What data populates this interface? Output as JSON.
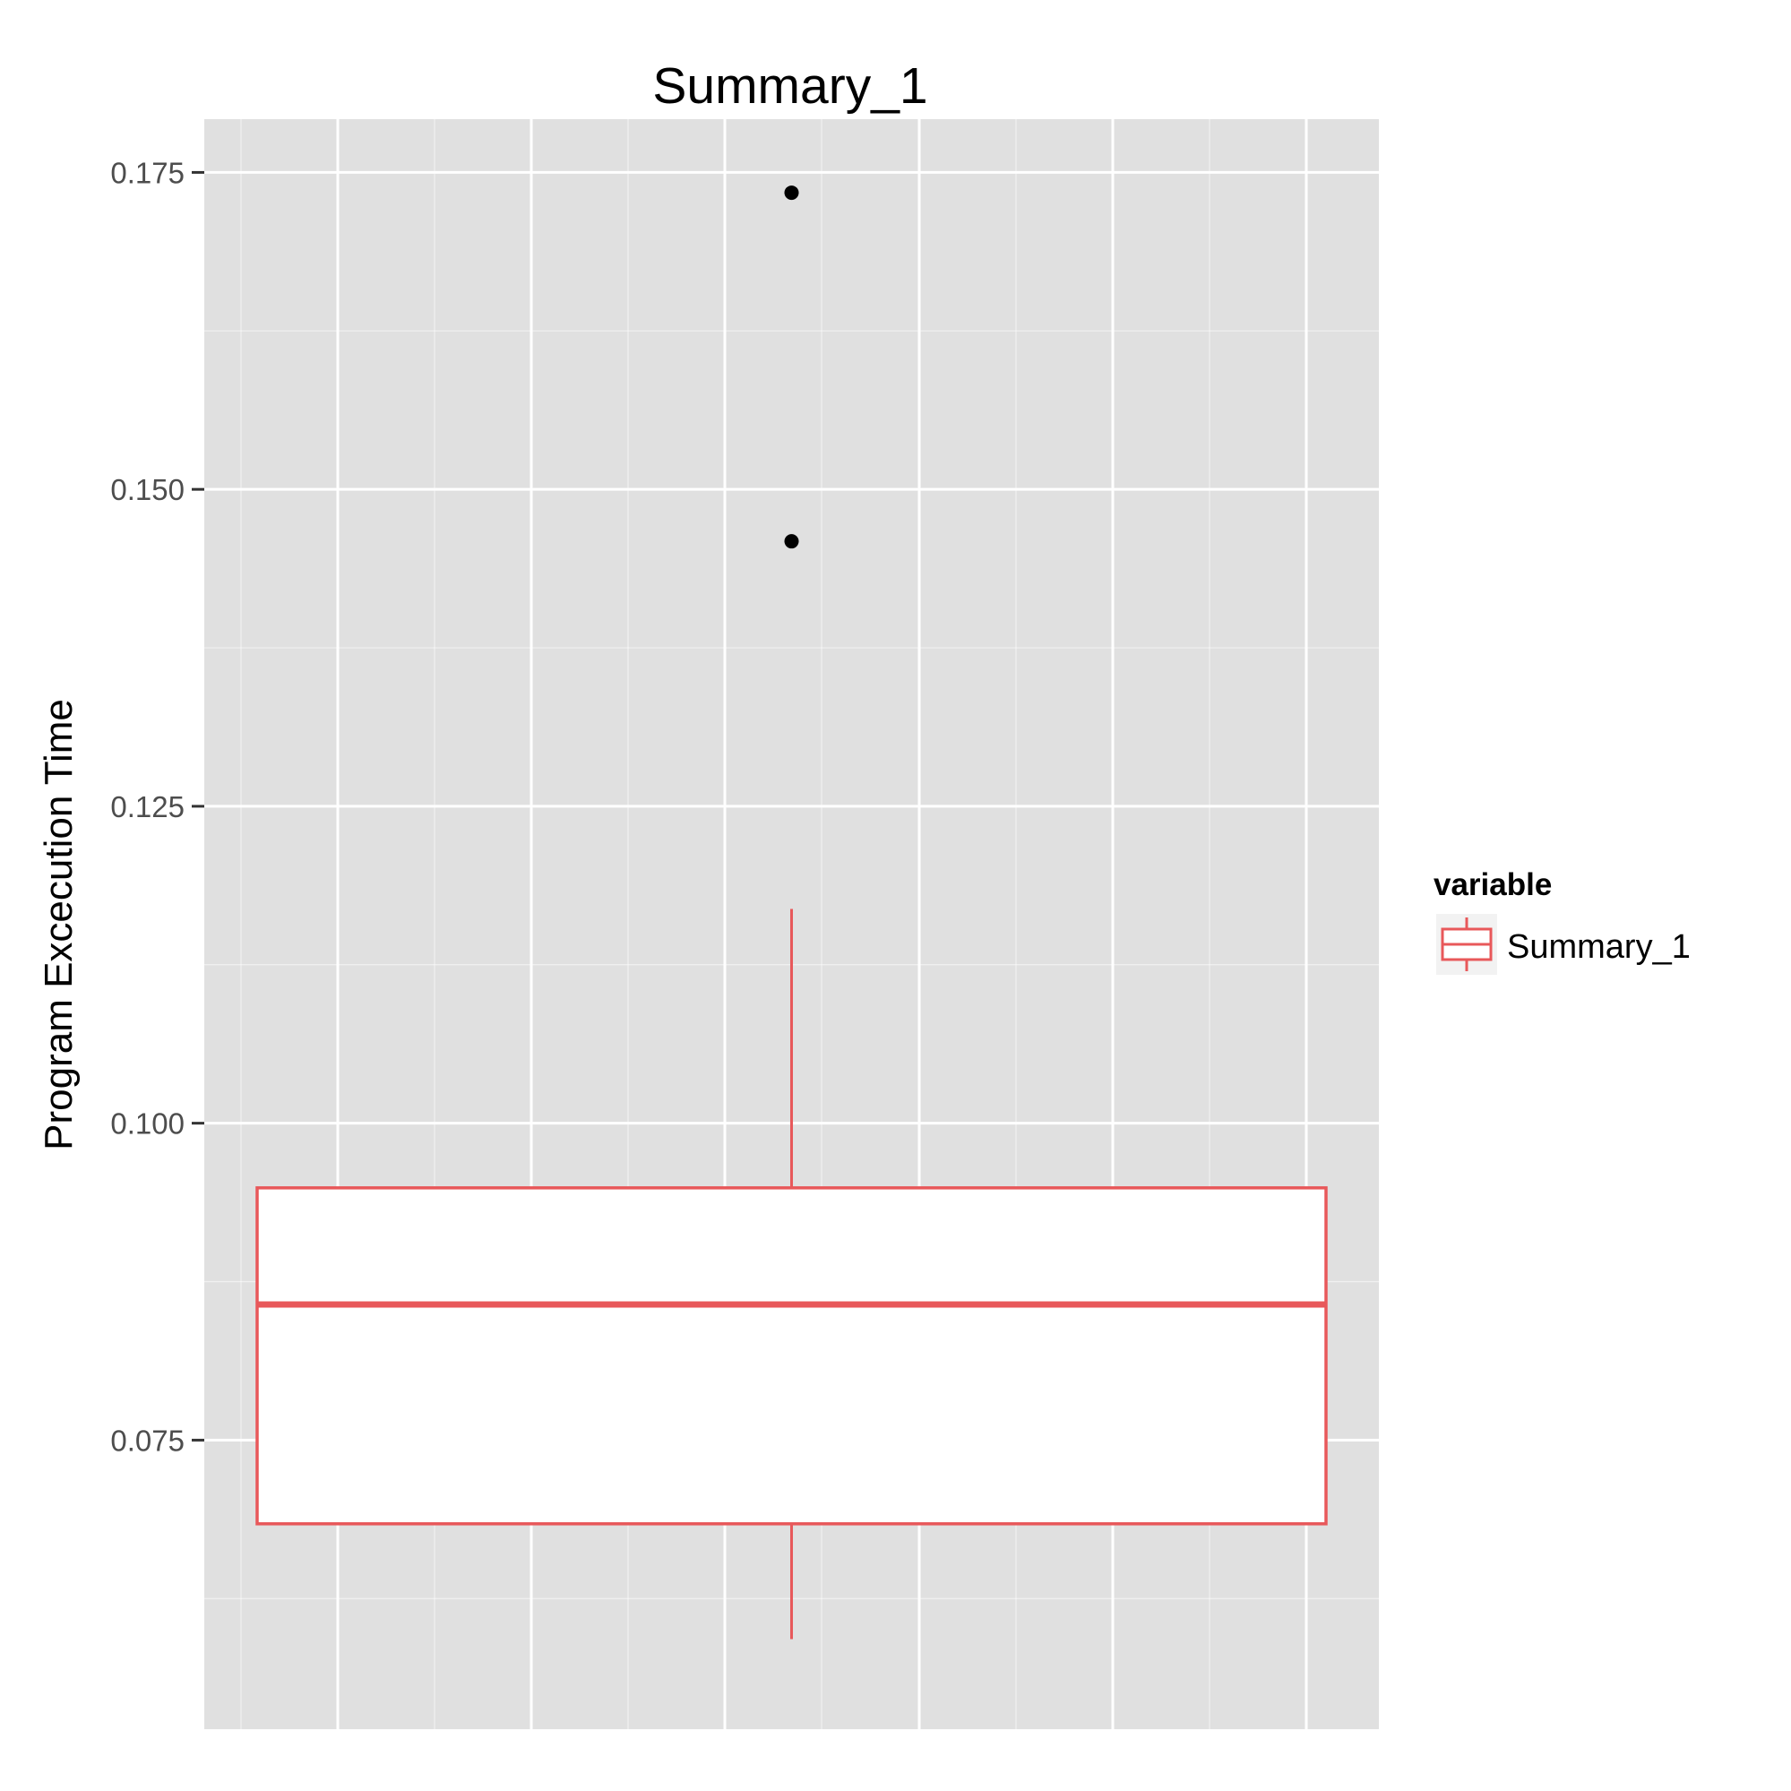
{
  "chart_data": {
    "type": "box",
    "title": "Summary_1",
    "xlabel": "",
    "ylabel": "Program Excecution Time",
    "ylim": [
      0.0522,
      0.1792
    ],
    "y_ticks": [
      0.075,
      0.1,
      0.125,
      0.15,
      0.175
    ],
    "y_tick_labels": [
      "0.075",
      "0.100",
      "0.125",
      "0.150",
      "0.175"
    ],
    "grid": true,
    "legend": {
      "title": "variable",
      "placement": "right",
      "entries": [
        "Summary_1"
      ]
    },
    "series": [
      {
        "name": "Summary_1",
        "color": "#e8585a",
        "fill": "#ffffff",
        "whisker_low": 0.0593,
        "q1": 0.0684,
        "median": 0.0857,
        "q3": 0.0949,
        "whisker_high": 0.1169,
        "outliers": [
          0.1459,
          0.1734
        ]
      }
    ],
    "colors": {
      "panel": "#e0e0e0",
      "grid": "#ffffff",
      "box": "#e8585a",
      "outlier": "#000000"
    }
  }
}
